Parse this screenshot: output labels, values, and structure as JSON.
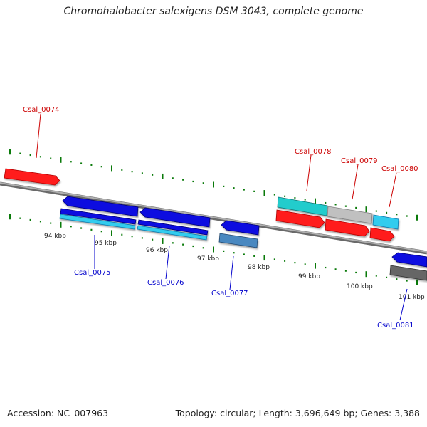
{
  "title": "Chromohalobacter salexigens DSM 3043, complete genome",
  "accession": "Accession: NC_007963",
  "summary": "Topology: circular; Length: 3,696,649 bp; Genes: 3,388",
  "colors": {
    "backbone": "#8a8a8a",
    "ticks": "#0a7a0a",
    "label_forward": "#cc0000",
    "label_reverse": "#0000cc",
    "red": "#ff1a1a",
    "blue": "#1010e0",
    "cyan": "#33ccee",
    "teal": "#22cccc",
    "gray": "#c0c0c0",
    "steel": "#4a88c0",
    "darkgray": "#666666"
  },
  "scale_ticks": [
    "94 kbp",
    "95 kbp",
    "96 kbp",
    "97 kbp",
    "98 kbp",
    "99 kbp",
    "100 kbp",
    "101 kbp"
  ],
  "gene_labels": [
    {
      "text": "Csal_0074",
      "strand": "forward"
    },
    {
      "text": "Csal_0075",
      "strand": "reverse"
    },
    {
      "text": "Csal_0076",
      "strand": "reverse"
    },
    {
      "text": "Csal_0077",
      "strand": "reverse"
    },
    {
      "text": "Csal_0078",
      "strand": "forward"
    },
    {
      "text": "Csal_0079",
      "strand": "forward"
    },
    {
      "text": "Csal_0080",
      "strand": "forward"
    },
    {
      "text": "Csal_0081",
      "strand": "reverse"
    }
  ]
}
